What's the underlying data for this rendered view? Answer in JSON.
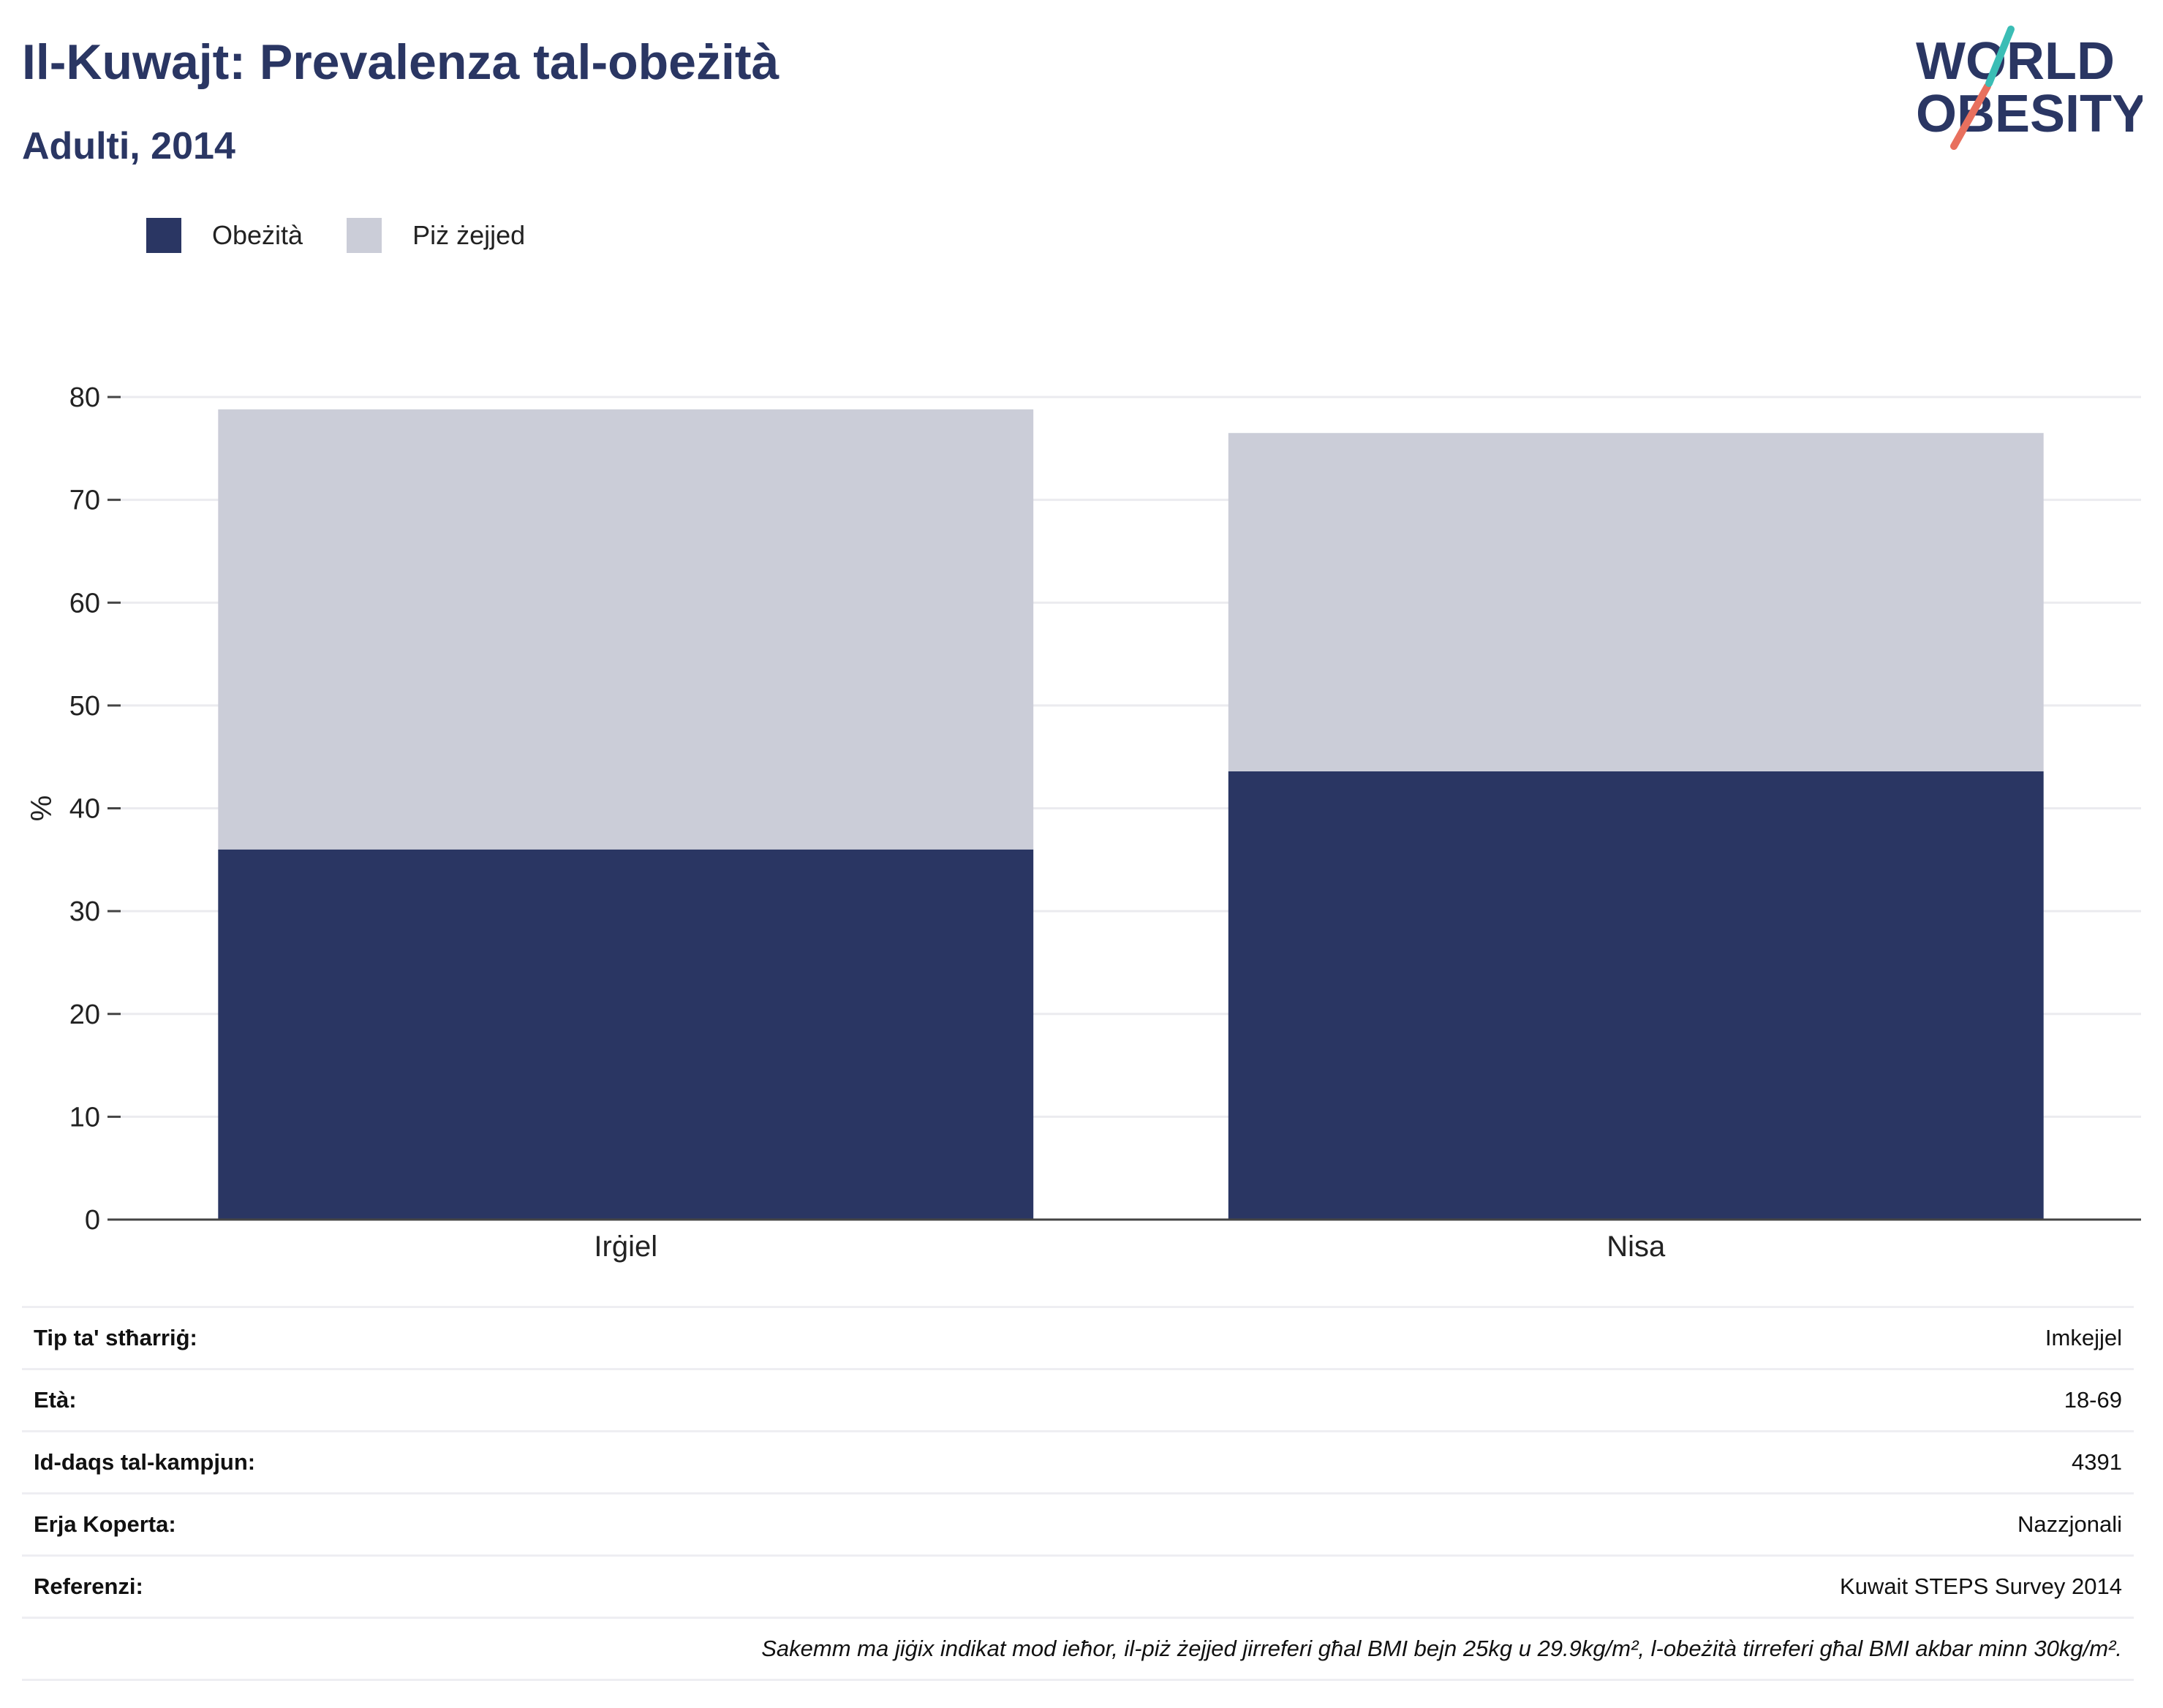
{
  "header": {
    "title": "Il-Kuwajt: Prevalenza tal-obeżità",
    "subtitle": "Adulti, 2014"
  },
  "logo": {
    "line1": "WORLD",
    "line2": "OBESITY"
  },
  "colors": {
    "obesity": "#2a3663",
    "overweight": "#cbcdd8",
    "text": "#2a3663"
  },
  "chart_data": {
    "type": "bar",
    "stacked": true,
    "categories": [
      "Irġiel",
      "Nisa"
    ],
    "series": [
      {
        "name": "Obeżità",
        "values": [
          36.0,
          43.6
        ]
      },
      {
        "name": "Piż żejjed",
        "values": [
          42.8,
          32.9
        ]
      }
    ],
    "ylabel": "%",
    "ylim": [
      0,
      80
    ],
    "yticks": [
      "0",
      "10",
      "20",
      "30",
      "40",
      "50",
      "60",
      "70",
      "80"
    ],
    "grid": true,
    "legend": "top-left"
  },
  "info": {
    "rows": [
      {
        "key": "Tip ta' stħarriġ:",
        "value": "Imkejjel"
      },
      {
        "key": "Età:",
        "value": "18-69"
      },
      {
        "key": "Id-daqs tal-kampjun:",
        "value": "4391"
      },
      {
        "key": "Erja Koperta:",
        "value": "Nazzjonali"
      },
      {
        "key": "Referenzi:",
        "value": "Kuwait STEPS Survey 2014"
      }
    ],
    "note": "Sakemm ma jiġix indikat mod ieħor, il-piż żejjed jirreferi għal BMI bejn 25kg u 29.9kg/m², l-obeżità tirreferi għal BMI akbar minn 30kg/m²."
  }
}
